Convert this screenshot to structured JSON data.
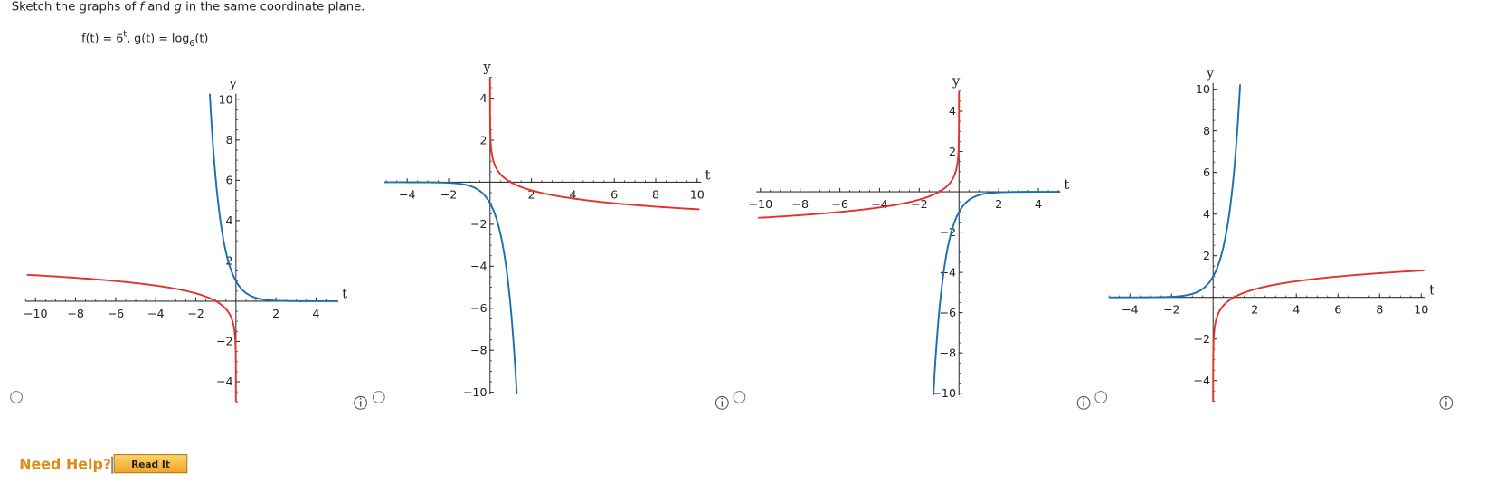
{
  "question": {
    "parts": [
      "Sketch the graphs of ",
      "f",
      " and ",
      "g",
      " in the same coordinate plane."
    ]
  },
  "formula": {
    "f_lhs": "f(t) = ",
    "base": "6",
    "exponent": "t",
    "g_lhs": ", g(t) = log",
    "log_base": "6",
    "arg": "(t)"
  },
  "graphs": [
    {
      "x_label": "t",
      "y_label": "y",
      "xticks": [
        {
          "value": -10,
          "label": "−10"
        },
        {
          "value": -8,
          "label": "−8"
        },
        {
          "value": -6,
          "label": "−6"
        },
        {
          "value": -4,
          "label": "−4"
        },
        {
          "value": -2,
          "label": "−2"
        },
        2,
        4
      ],
      "yticks": [
        10,
        8,
        6,
        4,
        2,
        {
          "value": -2,
          "label": "−2"
        },
        {
          "value": -4,
          "label": "−4"
        }
      ]
    },
    {
      "x_label": "t",
      "y_label": "y",
      "xticks": [
        {
          "value": -4,
          "label": "−4"
        },
        {
          "value": -2,
          "label": "−2"
        },
        2,
        4,
        6,
        8,
        10
      ],
      "yticks": [
        4,
        2,
        {
          "value": -2,
          "label": "−2"
        },
        {
          "value": -4,
          "label": "−4"
        },
        {
          "value": -6,
          "label": "−6"
        },
        {
          "value": -8,
          "label": "−8"
        },
        {
          "value": -10,
          "label": "−10"
        }
      ]
    },
    {
      "x_label": "t",
      "y_label": "y",
      "xticks": [
        {
          "value": -10,
          "label": "−10"
        },
        {
          "value": -8,
          "label": "−8"
        },
        {
          "value": -6,
          "label": "−6"
        },
        {
          "value": -4,
          "label": "−4"
        },
        {
          "value": -2,
          "label": "−2"
        },
        2,
        4
      ],
      "yticks": [
        4,
        2,
        {
          "value": -2,
          "label": "−2"
        },
        {
          "value": -4,
          "label": "−4"
        },
        {
          "value": -6,
          "label": "−6"
        },
        {
          "value": -8,
          "label": "−8"
        },
        {
          "value": -10,
          "label": "−10"
        }
      ]
    },
    {
      "x_label": "t",
      "y_label": "y",
      "xticks": [
        {
          "value": -4,
          "label": "−4"
        },
        {
          "value": -2,
          "label": "−2"
        },
        2,
        4,
        6,
        8,
        10
      ],
      "yticks": [
        10,
        8,
        6,
        4,
        2,
        {
          "value": -2,
          "label": "−2"
        },
        {
          "value": -4,
          "label": "−4"
        }
      ]
    }
  ],
  "help": {
    "label": "Need Help?",
    "button": "Read It"
  }
}
